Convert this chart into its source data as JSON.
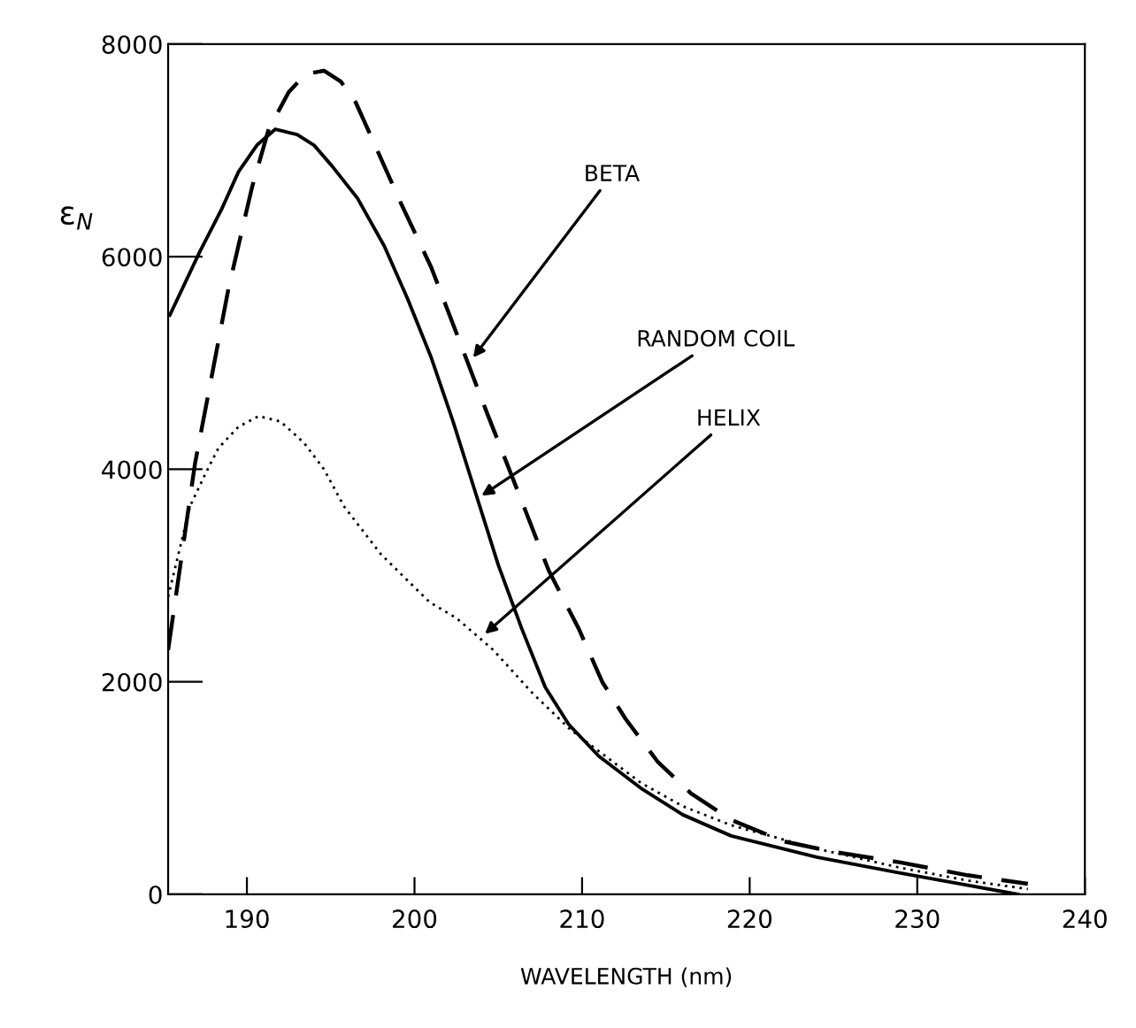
{
  "chart_data": {
    "type": "line",
    "xlabel": "WAVELENGTH (nm)",
    "ylabel": "ε$_{N}$",
    "xlim": [
      185.3,
      240
    ],
    "ylim": [
      0,
      8000
    ],
    "xticks": [
      190,
      200,
      210,
      220,
      230,
      240
    ],
    "yticks": [
      0,
      2000,
      4000,
      6000,
      8000
    ],
    "grid": false,
    "legend": false,
    "series": [
      {
        "color": "#000000",
        "line_style": "dashed",
        "x": [
          185.3,
          186.9,
          188.9,
          190.3,
          191.3,
          192.5,
          193.5,
          194.6,
          195.6,
          196.5,
          197.5,
          199.2,
          201.0,
          202.7,
          204.4,
          206.4,
          208.0,
          209.8,
          211.2,
          212.6,
          214.5,
          216.5,
          218.9,
          222.0,
          225.0,
          229.0,
          233.0,
          236.6
        ],
        "values": [
          2300,
          4050,
          5700,
          6650,
          7200,
          7550,
          7720,
          7750,
          7650,
          7450,
          7100,
          6500,
          5900,
          5200,
          4500,
          3700,
          3050,
          2500,
          2000,
          1650,
          1250,
          950,
          700,
          500,
          400,
          300,
          180,
          100
        ]
      },
      {
        "color": "#000000",
        "line_style": "solid",
        "x": [
          185.4,
          187.2,
          188.5,
          189.5,
          190.6,
          191.7,
          193.0,
          194.0,
          195.1,
          196.6,
          198.2,
          199.6,
          201.0,
          202.3,
          203.6,
          205.0,
          206.4,
          207.8,
          209.2,
          211.0,
          213.5,
          216.0,
          218.9,
          224.0,
          229.0,
          232.5,
          236.0
        ],
        "values": [
          5450,
          6050,
          6450,
          6800,
          7050,
          7200,
          7150,
          7050,
          6850,
          6550,
          6100,
          5600,
          5050,
          4450,
          3800,
          3100,
          2500,
          1950,
          1600,
          1300,
          1000,
          750,
          550,
          350,
          200,
          100,
          0
        ]
      },
      {
        "color": "#000000",
        "line_style": "dotted",
        "x": [
          185.3,
          186.6,
          187.5,
          188.3,
          189.5,
          190.7,
          192.0,
          193.4,
          194.6,
          195.8,
          198.0,
          200.9,
          202.5,
          204.7,
          207.0,
          209.3,
          213.5,
          216.0,
          218.9,
          224.0,
          229.0,
          233.0,
          236.6
        ],
        "values": [
          2800,
          3650,
          3950,
          4200,
          4400,
          4500,
          4450,
          4250,
          4000,
          3650,
          3200,
          2750,
          2600,
          2300,
          1900,
          1550,
          1050,
          830,
          650,
          430,
          250,
          130,
          50
        ]
      }
    ],
    "annotations": [
      {
        "text": "BETA",
        "x": 203.5,
        "y": 5050
      },
      {
        "text": "RANDOM COIL",
        "x": 204.0,
        "y": 3750
      },
      {
        "text": "HELIX",
        "x": 204.2,
        "y": 2450
      }
    ]
  }
}
